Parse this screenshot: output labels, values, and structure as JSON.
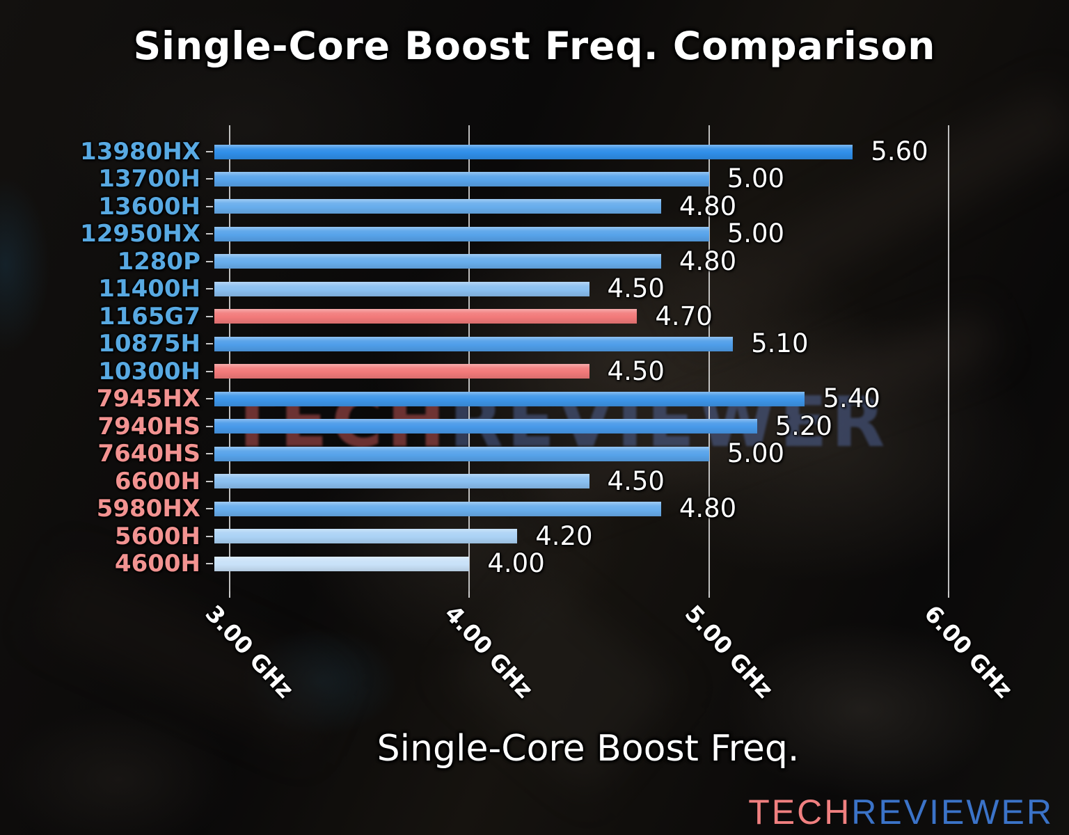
{
  "title": "Single-Core Boost Freq. Comparison",
  "watermark": {
    "part1": "TECH",
    "part2": "REVIEWER",
    "color1": "rgba(205,90,90,0.50)",
    "color2": "rgba(88,114,176,0.45)"
  },
  "logo": {
    "part1": "TECH",
    "part2": "REVIEWER",
    "color1": "#f08080",
    "color2": "#3b73c8"
  },
  "chart_data": {
    "type": "bar",
    "orientation": "horizontal",
    "title": "Single-Core Boost Freq. Comparison",
    "xlabel": "Single-Core Boost Freq.",
    "unit": "GHz",
    "grid": true,
    "legend": false,
    "xlim": [
      2.936,
      6.2
    ],
    "x_ticks": [
      {
        "value": 3.0,
        "label": "3.00 GHz"
      },
      {
        "value": 4.0,
        "label": "4.00 GHz"
      },
      {
        "value": 5.0,
        "label": "5.00 GHz"
      },
      {
        "value": 6.0,
        "label": "6.00 GHz"
      }
    ],
    "categories": [
      "13980HX",
      "13700H",
      "13600H",
      "12950HX",
      "1280P",
      "11400H",
      "1165G7",
      "10875H",
      "10300H",
      "7945HX",
      "7940HS",
      "7640HS",
      "6600H",
      "5980HX",
      "5600H",
      "4600H"
    ],
    "values": [
      5.6,
      5.0,
      4.8,
      5.0,
      4.8,
      4.5,
      4.7,
      5.1,
      4.5,
      5.4,
      5.2,
      5.0,
      4.5,
      4.8,
      4.2,
      4.0
    ],
    "value_labels": [
      "5.60",
      "5.00",
      "4.80",
      "5.00",
      "4.80",
      "4.50",
      "4.70",
      "5.10",
      "4.50",
      "5.40",
      "5.20",
      "5.00",
      "4.50",
      "4.80",
      "4.20",
      "4.00"
    ],
    "groups": [
      "intel",
      "intel",
      "intel",
      "intel",
      "intel",
      "intel",
      "intel",
      "intel",
      "intel",
      "amd",
      "amd",
      "amd",
      "amd",
      "amd",
      "amd",
      "amd"
    ],
    "label_colors": [
      "#58a9e2",
      "#58a9e2",
      "#58a9e2",
      "#58a9e2",
      "#58a9e2",
      "#58a9e2",
      "#58a9e2",
      "#58a9e2",
      "#58a9e2",
      "#f29391",
      "#f29391",
      "#f29391",
      "#f29391",
      "#f29391",
      "#f29391",
      "#f29391"
    ],
    "bar_colors": [
      "#2f8ee8",
      "#57a3ea",
      "#68adec",
      "#57a3ea",
      "#68adec",
      "#8abff0",
      "#f27a7a",
      "#4f9ee9",
      "#f27a7a",
      "#3d95e8",
      "#4899e9",
      "#57a3ea",
      "#8abff0",
      "#68adec",
      "#abd2f5",
      "#c8e1f8"
    ]
  }
}
